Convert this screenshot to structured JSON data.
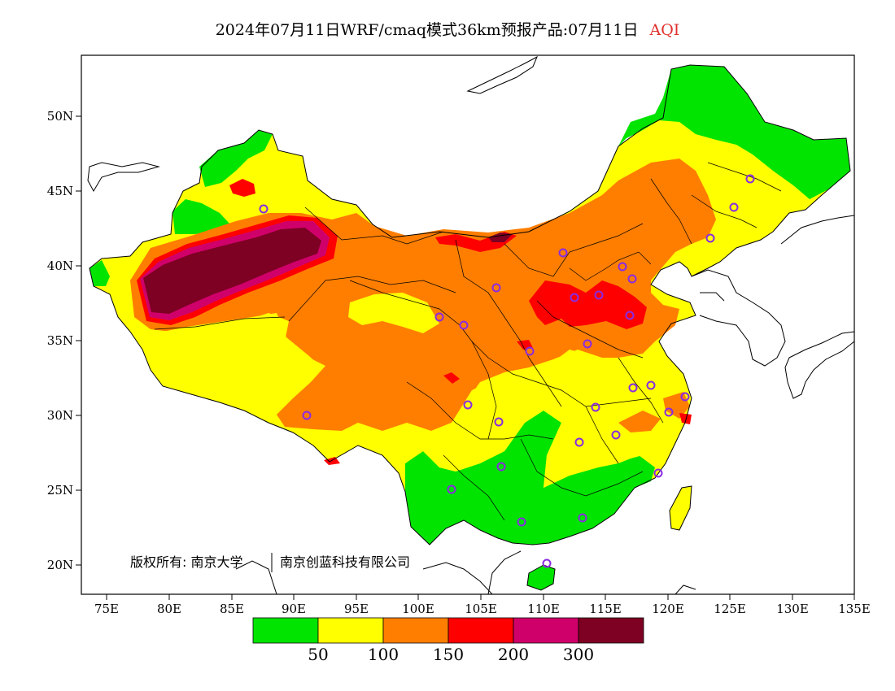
{
  "title": {
    "main": "2024年07月11日WRF/cmaq模式36km预报产品:07月11日",
    "pollutant": "AQI",
    "pollutant_color": "#e0302c"
  },
  "map": {
    "lat_labels": [
      "50N",
      "45N",
      "40N",
      "35N",
      "30N",
      "25N",
      "20N"
    ],
    "lon_labels": [
      "75E",
      "80E",
      "85E",
      "90E",
      "95E",
      "100E",
      "105E",
      "110E",
      "115E",
      "120E",
      "125E",
      "130E",
      "135E"
    ],
    "copyright_owner": "版权所有: 南京大学",
    "copyright_partner": "南京创蓝科技有限公司"
  },
  "legend": {
    "colors": [
      "#00e400",
      "#ffff00",
      "#ff7e00",
      "#ff0000",
      "#d0006a",
      "#7e0023"
    ],
    "labels": [
      "50",
      "100",
      "150",
      "200",
      "300"
    ]
  },
  "colors": {
    "good": "#00e400",
    "moderate": "#ffff00",
    "sensitive": "#ff7e00",
    "unhealthy": "#ff0000",
    "very_unhealthy": "#d0006a",
    "hazardous": "#7e0023",
    "station_marker": "#8a2be2"
  }
}
